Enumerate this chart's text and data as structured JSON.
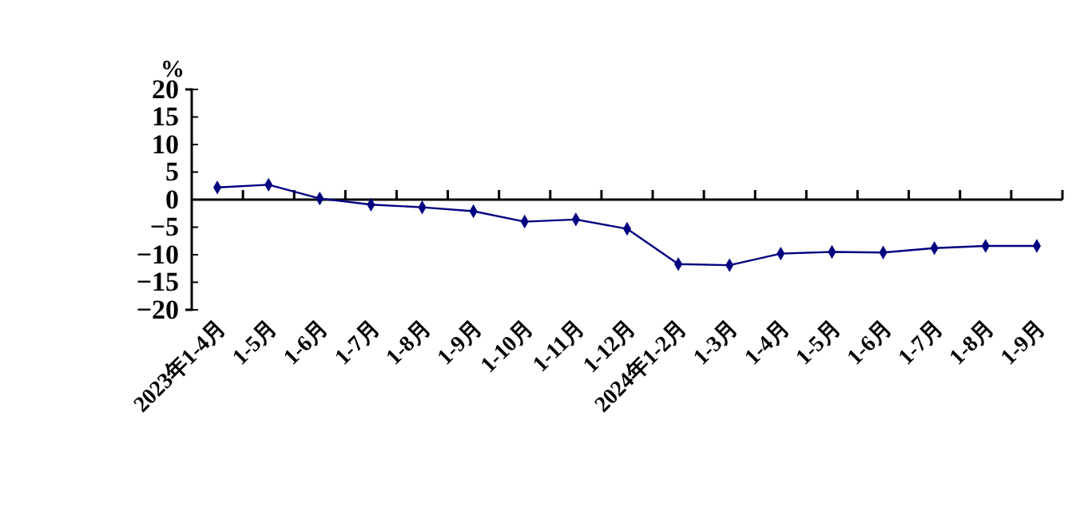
{
  "chart_data": {
    "type": "line",
    "ylabel": "%",
    "categories": [
      "2023年1-4月",
      "1-5月",
      "1-6月",
      "1-7月",
      "1-8月",
      "1-9月",
      "1-10月",
      "1-11月",
      "1-12月",
      "2024年1-2月",
      "1-3月",
      "1-4月",
      "1-5月",
      "1-6月",
      "1-7月",
      "1-8月",
      "1-9月"
    ],
    "series": [
      {
        "color": "#000080",
        "values": [
          2.2,
          2.7,
          0.2,
          -0.9,
          -1.4,
          -2.1,
          -4.0,
          -3.6,
          -5.3,
          -11.7,
          -11.9,
          -9.8,
          -9.5,
          -9.6,
          -8.8,
          -8.4,
          -8.4
        ]
      }
    ],
    "ylim": [
      -20,
      20
    ],
    "yticks": [
      -20,
      -15,
      -10,
      -5,
      0,
      5,
      10,
      15,
      20
    ],
    "marker": "diamond",
    "line_style": "solid"
  }
}
